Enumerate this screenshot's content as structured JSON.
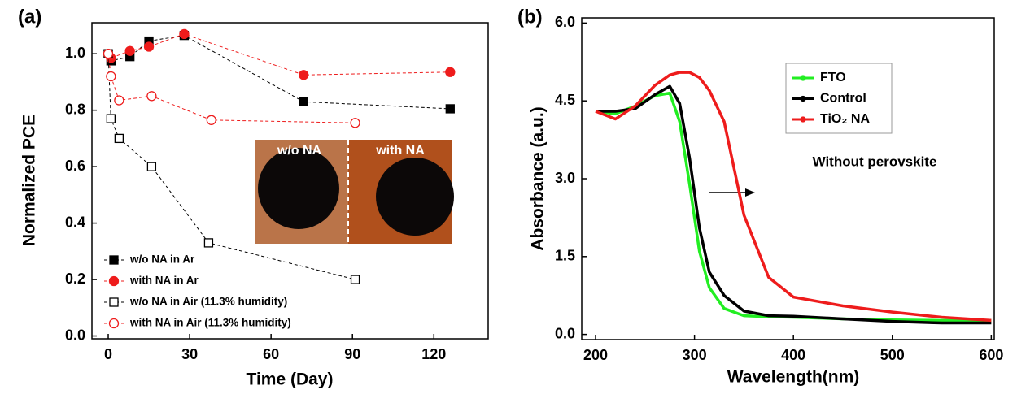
{
  "chart_data": [
    {
      "type": "line",
      "panel_label": "(a)",
      "x_label": "Time (Day)",
      "y_label": "Normalized PCE",
      "xlim": [
        -6,
        140
      ],
      "xticks": [
        0,
        30,
        60,
        90,
        120
      ],
      "ylim": [
        -0.01,
        1.11
      ],
      "yticks": [
        {
          "value": 0,
          "label": "0.0"
        },
        0.2,
        0.4,
        0.6,
        0.8,
        {
          "value": 1,
          "label": "1.0"
        }
      ],
      "legend": "lower left",
      "annotations": [
        "w/o NA",
        "with NA"
      ],
      "series": [
        {
          "name": "w/o NA in Ar",
          "color": "#000000",
          "marker": "square",
          "filled": true,
          "dashed": true,
          "x": [
            0,
            1,
            8,
            15,
            28,
            72,
            126
          ],
          "values": [
            1.0,
            0.975,
            0.99,
            1.045,
            1.065,
            0.83,
            0.805
          ]
        },
        {
          "name": "with NA in Ar",
          "color": "#ee1c1c",
          "marker": "circle",
          "filled": true,
          "dashed": true,
          "x": [
            0,
            1,
            8,
            15,
            28,
            72,
            126
          ],
          "values": [
            1.0,
            0.985,
            1.01,
            1.025,
            1.07,
            0.925,
            0.935
          ]
        },
        {
          "name": "w/o NA in Air (11.3% humidity)",
          "color": "#000000",
          "marker": "square",
          "filled": false,
          "dashed": true,
          "x": [
            0,
            1,
            4,
            16,
            37,
            91
          ],
          "values": [
            1.0,
            0.77,
            0.7,
            0.6,
            0.33,
            0.2
          ]
        },
        {
          "name": "with NA in Air (11.3% humidity)",
          "color": "#ee1c1c",
          "marker": "circle",
          "filled": false,
          "dashed": true,
          "x": [
            0,
            1,
            4,
            16,
            38,
            91
          ],
          "values": [
            1.0,
            0.92,
            0.835,
            0.85,
            0.765,
            0.755
          ]
        }
      ]
    },
    {
      "type": "line",
      "panel_label": "(b)",
      "x_label": "Wavelength(nm)",
      "y_label": "Absorbance (a.u.)",
      "xlim": [
        186,
        603
      ],
      "xticks": [
        200,
        300,
        400,
        500,
        600
      ],
      "ylim": [
        -0.1,
        6.1
      ],
      "yticks": [
        {
          "value": 0,
          "label": "0.0"
        },
        1.5,
        {
          "value": 3,
          "label": "3.0"
        },
        4.5,
        {
          "value": 6,
          "label": "6.0"
        }
      ],
      "legend": "upper right",
      "annotations": [
        "Without perovskite"
      ],
      "x": [
        200,
        220,
        240,
        260,
        275,
        285,
        295,
        305,
        315,
        330,
        350,
        375,
        400,
        450,
        500,
        550,
        600
      ],
      "series": [
        {
          "name": "FTO",
          "color": "#22ee22",
          "values": [
            4.3,
            4.25,
            4.4,
            4.6,
            4.65,
            4.1,
            2.9,
            1.6,
            0.9,
            0.5,
            0.36,
            0.34,
            0.33,
            0.3,
            0.28,
            0.27,
            0.27
          ]
        },
        {
          "name": "Control",
          "color": "#000000",
          "values": [
            4.3,
            4.3,
            4.35,
            4.62,
            4.78,
            4.45,
            3.4,
            2.05,
            1.2,
            0.75,
            0.45,
            0.36,
            0.35,
            0.3,
            0.25,
            0.22,
            0.22
          ]
        },
        {
          "name": "TiO₂ NA",
          "color": "#ee1c1c",
          "values": [
            4.3,
            4.15,
            4.4,
            4.8,
            5.0,
            5.05,
            5.05,
            4.95,
            4.7,
            4.1,
            2.3,
            1.1,
            0.72,
            0.55,
            0.43,
            0.33,
            0.27
          ]
        }
      ]
    }
  ]
}
